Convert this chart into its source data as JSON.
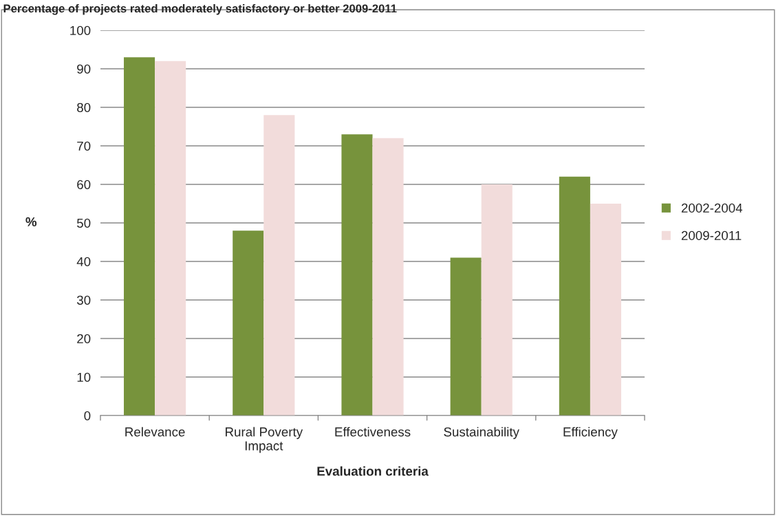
{
  "chart_data": {
    "type": "bar",
    "title": "Percentage of projects rated moderately satisfactory or better 2009-2011",
    "xlabel": "Evaluation criteria",
    "ylabel": "%",
    "categories": [
      "Relevance",
      "Rural Poverty Impact",
      "Effectiveness",
      "Sustainability",
      "Efficiency"
    ],
    "series": [
      {
        "name": "2002-2004",
        "color": "#77933c",
        "values": [
          93,
          48,
          73,
          41,
          62
        ]
      },
      {
        "name": "2009-2011",
        "color": "#f2dcdb",
        "values": [
          92,
          78,
          72,
          60,
          55
        ]
      }
    ],
    "ylim": [
      0,
      100
    ],
    "yticks": [
      0,
      10,
      20,
      30,
      40,
      50,
      60,
      70,
      80,
      90,
      100
    ],
    "grid": "y",
    "legend": "right"
  }
}
